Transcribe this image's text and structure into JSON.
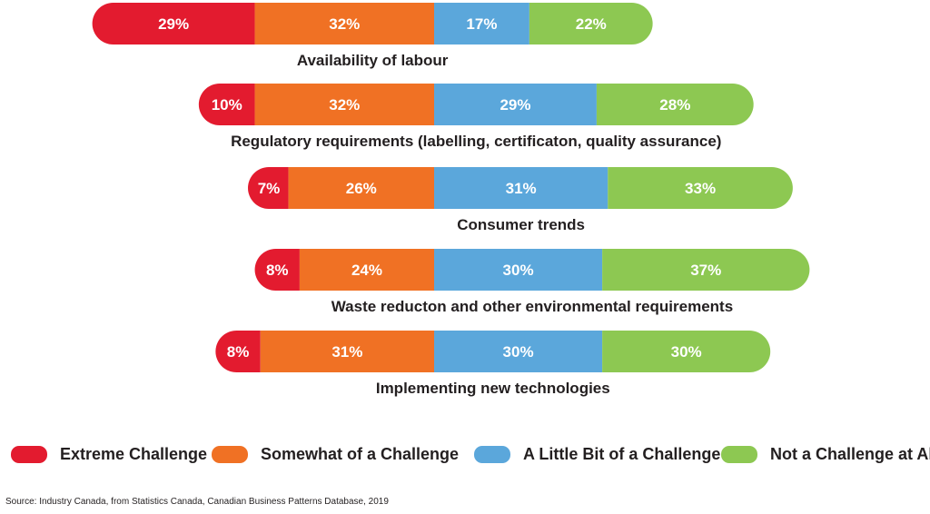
{
  "chart_data": {
    "type": "bar",
    "orientation": "horizontal",
    "stacked": true,
    "title": "",
    "xlabel": "",
    "ylabel": "",
    "categories": [
      "Availability of labour",
      "Regulatory requirements (labelling, certificaton, quality assurance)",
      "Consumer trends",
      "Waste reducton and other environmental requirements",
      "Implementing new technologies"
    ],
    "series": [
      {
        "name": "Extreme Challenge",
        "color": "#e31b2f",
        "values": [
          29,
          10,
          7,
          8,
          8
        ],
        "labels": [
          "29%",
          "10%",
          "7%",
          "8%",
          "8%"
        ]
      },
      {
        "name": "Somewhat of a Challenge",
        "color": "#f07124",
        "values": [
          32,
          32,
          26,
          24,
          31
        ],
        "labels": [
          "32%",
          "32%",
          "26%",
          "24%",
          "31%"
        ]
      },
      {
        "name": "A Little Bit of a Challenge",
        "color": "#5ba7db",
        "values": [
          17,
          29,
          31,
          30,
          30
        ],
        "labels": [
          "17%",
          "29%",
          "31%",
          "30%",
          "30%"
        ]
      },
      {
        "name": "Not a Challenge at All",
        "color": "#8dc852",
        "values": [
          22,
          28,
          33,
          37,
          30
        ],
        "labels": [
          "22%",
          "28%",
          "33%",
          "37%",
          "30%"
        ]
      }
    ],
    "baseline_between": [
      "Somewhat of a Challenge",
      "A Little Bit of a Challenge"
    ],
    "legend": {
      "position": "bottom"
    },
    "source": "Source: Industry Canada, from Statistics Canada, Canadian Business Patterns Database, 2019"
  }
}
